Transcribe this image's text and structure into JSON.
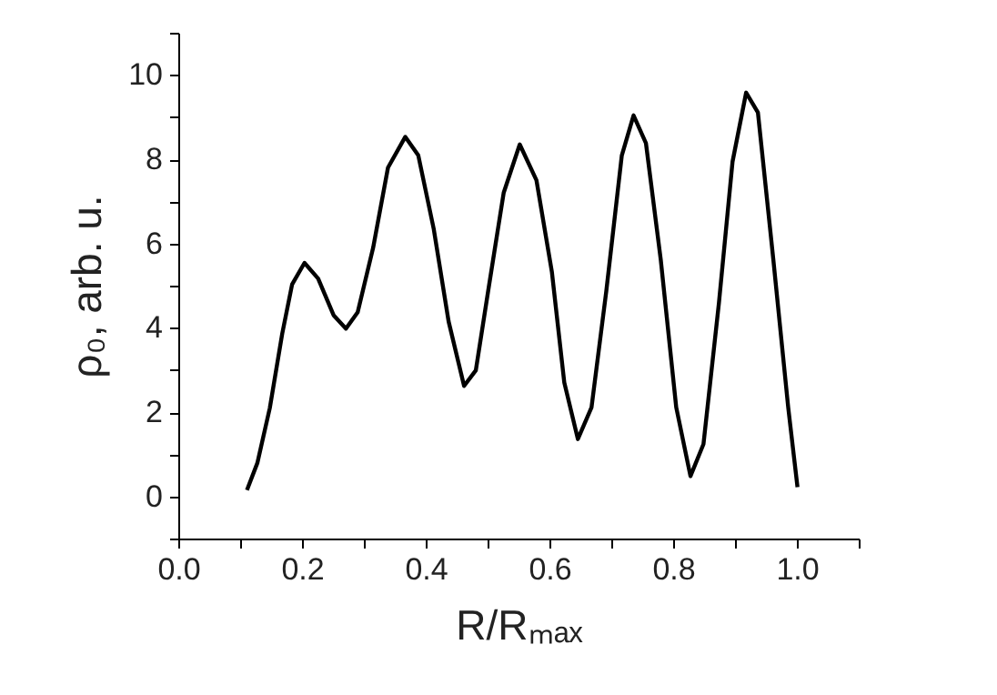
{
  "chart_data": {
    "type": "line",
    "xlabel": "R/Rₘₐₓ",
    "ylabel": "ρ₀, arb. u.",
    "x": [
      0.111,
      0.128,
      0.148,
      0.168,
      0.184,
      0.204,
      0.226,
      0.251,
      0.271,
      0.29,
      0.315,
      0.339,
      0.367,
      0.388,
      0.413,
      0.437,
      0.462,
      0.481,
      0.501,
      0.526,
      0.552,
      0.579,
      0.604,
      0.624,
      0.646,
      0.668,
      0.692,
      0.717,
      0.736,
      0.756,
      0.78,
      0.805,
      0.828,
      0.849,
      0.874,
      0.896,
      0.918,
      0.937,
      0.962,
      0.986,
      1.001
    ],
    "series": [
      {
        "color": "#000000",
        "values": [
          0.15,
          0.8,
          2.1,
          3.86,
          5.03,
          5.54,
          5.17,
          4.3,
          3.98,
          4.37,
          5.9,
          7.8,
          8.53,
          8.09,
          6.34,
          4.15,
          2.62,
          2.99,
          4.88,
          7.2,
          8.35,
          7.5,
          5.32,
          2.7,
          1.36,
          2.11,
          4.88,
          8.09,
          9.04,
          8.38,
          5.61,
          2.11,
          0.48,
          1.24,
          4.59,
          7.94,
          9.58,
          9.11,
          5.61,
          2.11,
          0.22
        ]
      }
    ],
    "xlim": [
      0,
      1.1
    ],
    "ylim": [
      -1,
      11
    ],
    "xticks": [
      {
        "value": 0,
        "label": "0.0"
      },
      {
        "value": 0.1,
        "label": null
      },
      {
        "value": 0.2,
        "label": "0.2"
      },
      {
        "value": 0.3,
        "label": null
      },
      {
        "value": 0.4,
        "label": "0.4"
      },
      {
        "value": 0.5,
        "label": null
      },
      {
        "value": 0.6,
        "label": "0.6"
      },
      {
        "value": 0.7,
        "label": null
      },
      {
        "value": 0.8,
        "label": "0.8"
      },
      {
        "value": 0.9,
        "label": null
      },
      {
        "value": 1.0,
        "label": "1.0"
      },
      {
        "value": 1.1,
        "label": null
      }
    ],
    "yticks": [
      {
        "value": -1,
        "label": null
      },
      {
        "value": 0,
        "label": "0"
      },
      {
        "value": 1,
        "label": null
      },
      {
        "value": 2,
        "label": "2"
      },
      {
        "value": 3,
        "label": null
      },
      {
        "value": 4,
        "label": "4"
      },
      {
        "value": 5,
        "label": null
      },
      {
        "value": 6,
        "label": "6"
      },
      {
        "value": 7,
        "label": null
      },
      {
        "value": 8,
        "label": "8"
      },
      {
        "value": 9,
        "label": null
      },
      {
        "value": 10,
        "label": "10"
      },
      {
        "value": 11,
        "label": null
      }
    ],
    "grid": false,
    "marker": "none",
    "line_style": "solid"
  }
}
